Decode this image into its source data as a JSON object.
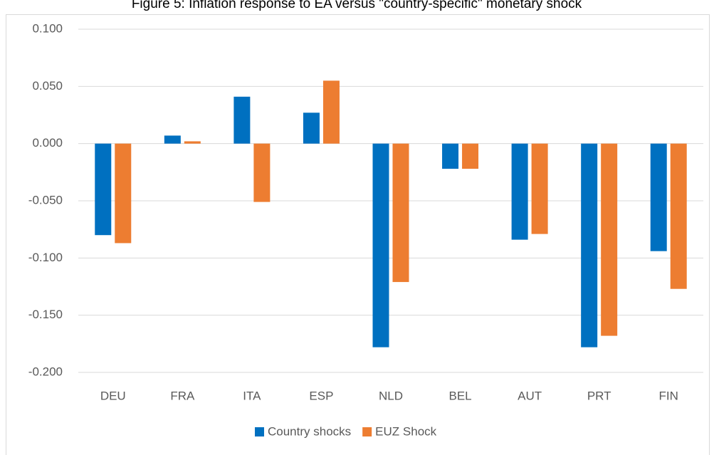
{
  "chart_data": {
    "type": "bar",
    "title": "Figure 5: Inflation response to EA versus \"country-specific\" monetary shock",
    "categories": [
      "DEU",
      "FRA",
      "ITA",
      "ESP",
      "NLD",
      "BEL",
      "AUT",
      "PRT",
      "FIN"
    ],
    "series": [
      {
        "name": "Country shocks",
        "color": "#0070c0",
        "values": [
          -0.08,
          0.007,
          0.041,
          0.027,
          -0.178,
          -0.022,
          -0.084,
          -0.178,
          -0.094
        ]
      },
      {
        "name": "EUZ Shock",
        "color": "#ed7d31",
        "values": [
          -0.087,
          0.002,
          -0.051,
          0.055,
          -0.121,
          -0.022,
          -0.079,
          -0.168,
          -0.127
        ]
      }
    ],
    "ylim": [
      -0.2,
      0.1
    ],
    "yticks": [
      {
        "value": -0.2,
        "label": "-0.200"
      },
      {
        "value": -0.15,
        "label": "-0.150"
      },
      {
        "value": -0.1,
        "label": "-0.100"
      },
      {
        "value": -0.05,
        "label": "-0.050"
      },
      {
        "value": 0,
        "label": "0.000"
      },
      {
        "value": 0.05,
        "label": "0.050"
      },
      {
        "value": 0.1,
        "label": "0.100"
      }
    ],
    "grid": true,
    "legend": "bottom"
  }
}
